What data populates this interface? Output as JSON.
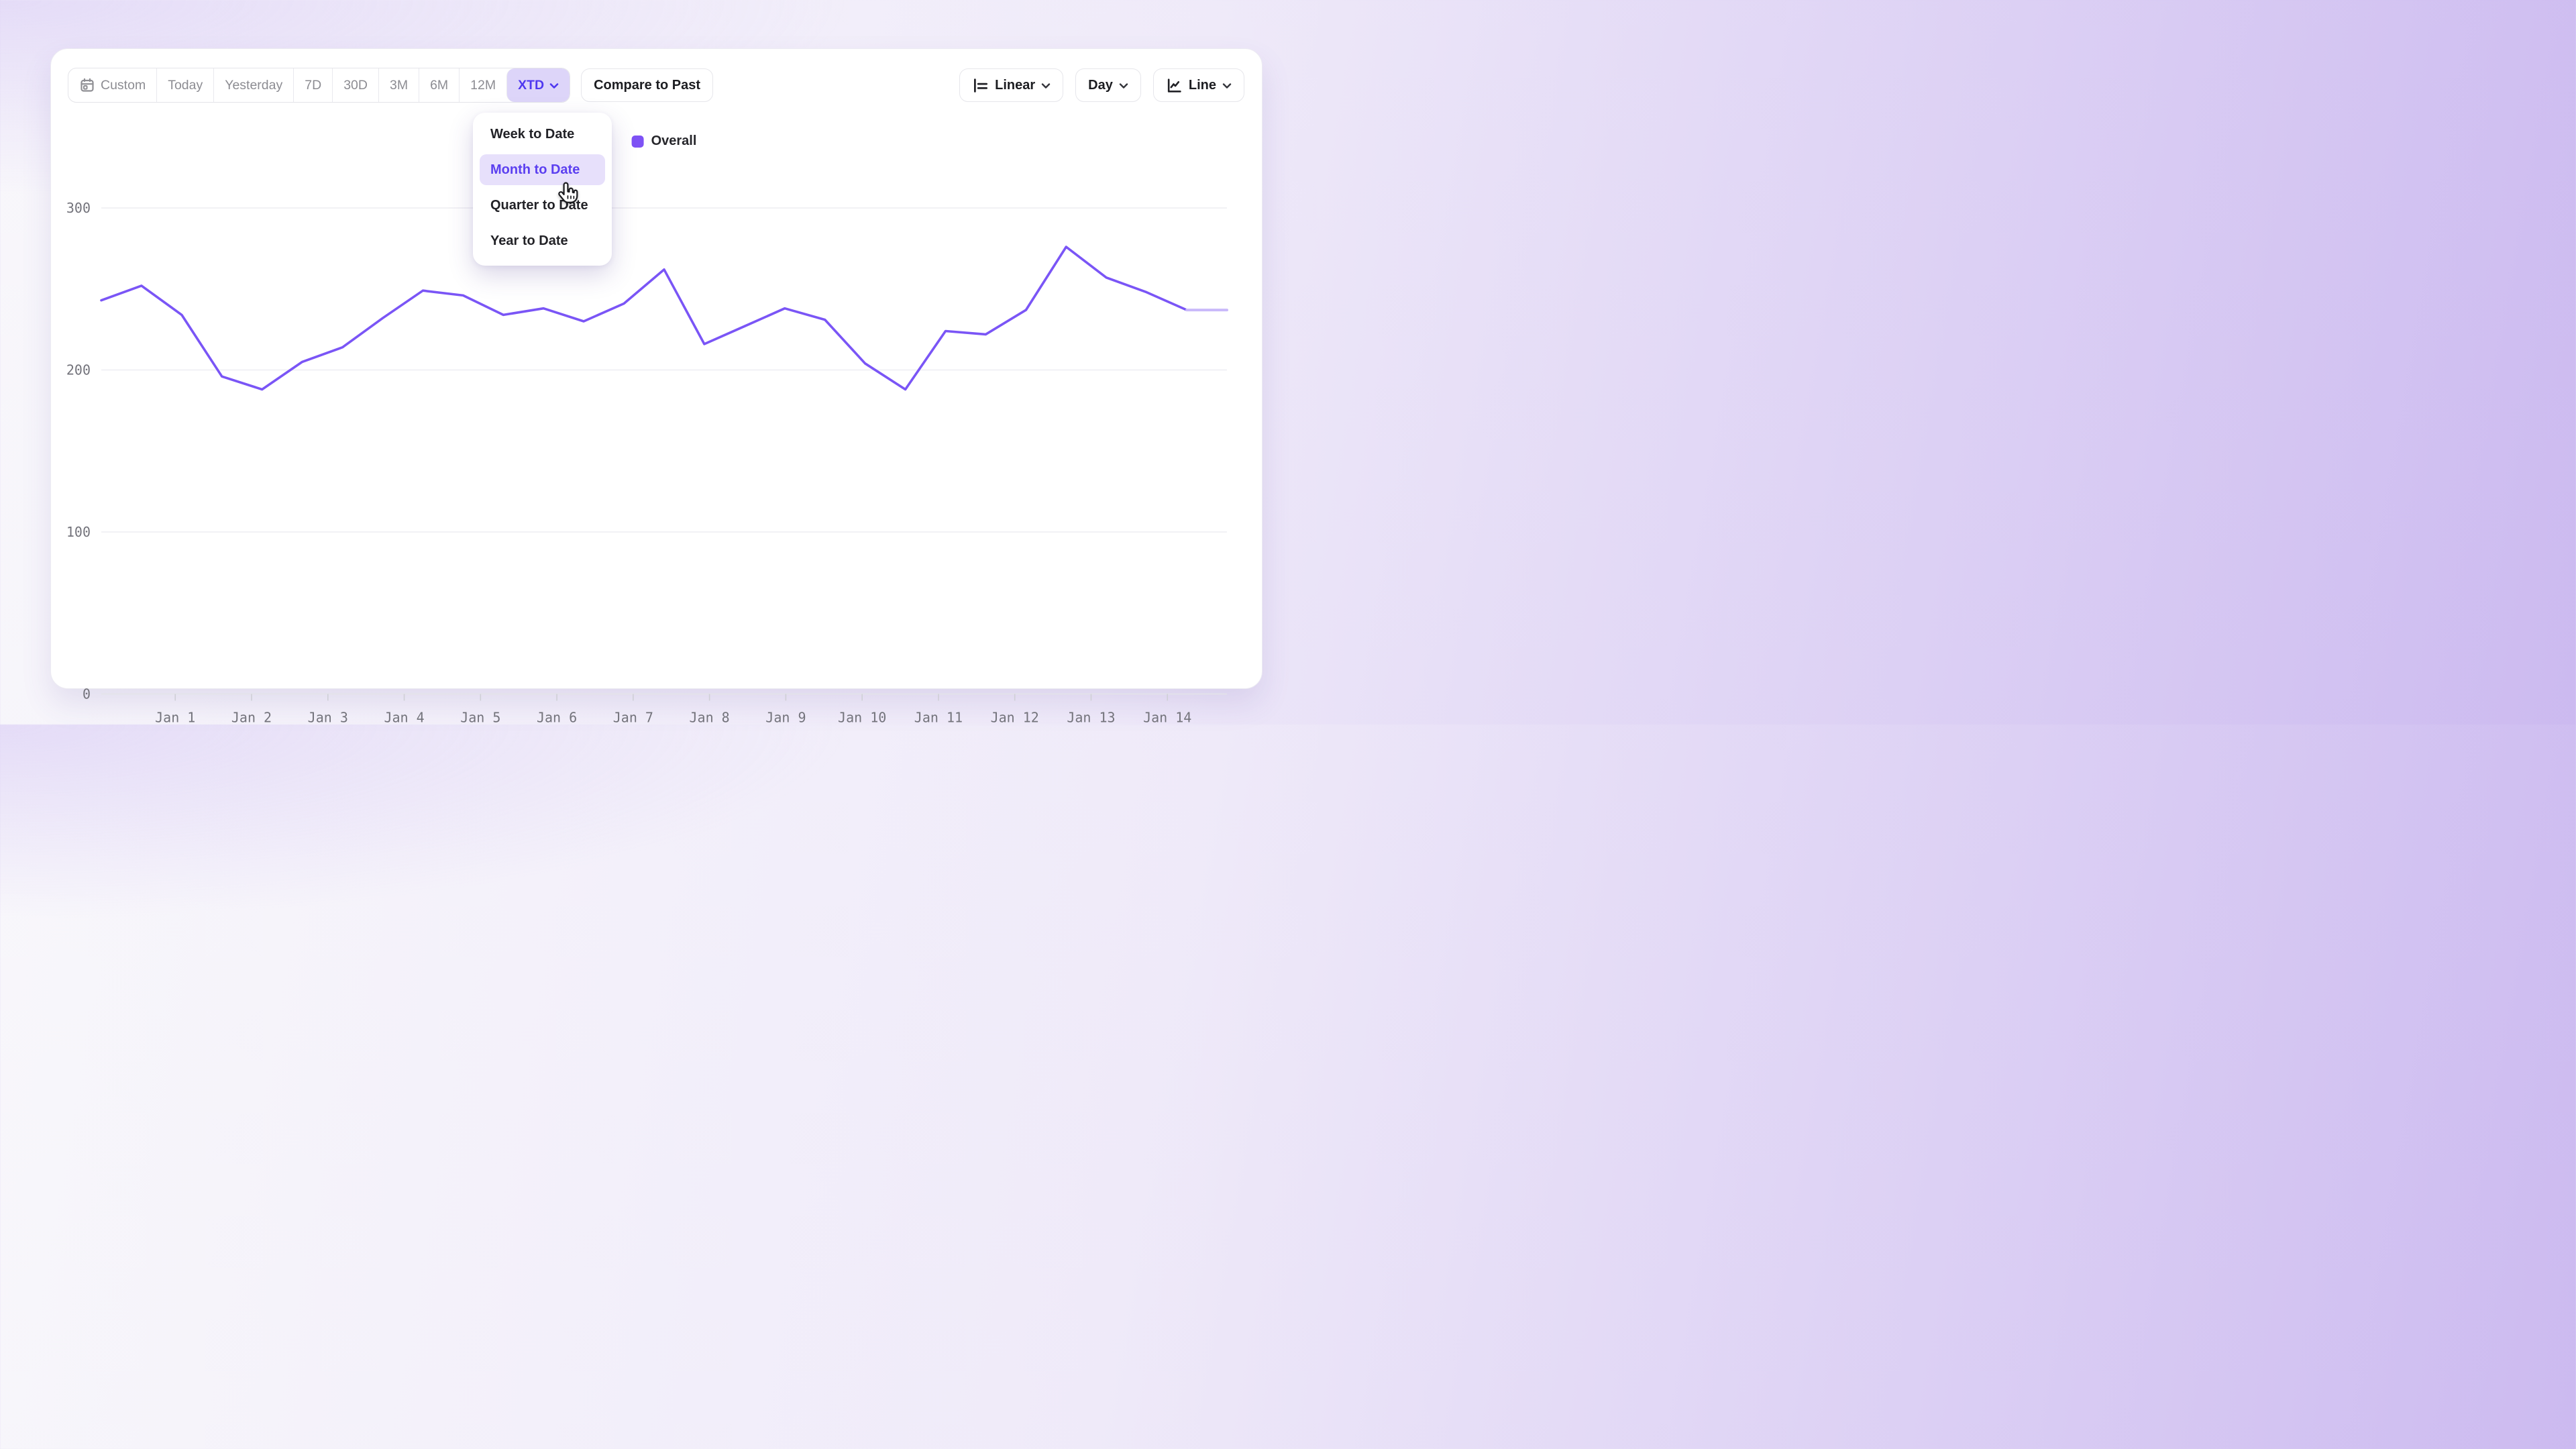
{
  "toolbar": {
    "segments": [
      {
        "label": "Custom",
        "icon": "calendar-icon",
        "active": false,
        "chevron": false
      },
      {
        "label": "Today",
        "active": false,
        "chevron": false
      },
      {
        "label": "Yesterday",
        "active": false,
        "chevron": false
      },
      {
        "label": "7D",
        "active": false,
        "chevron": false
      },
      {
        "label": "30D",
        "active": false,
        "chevron": false
      },
      {
        "label": "3M",
        "active": false,
        "chevron": false
      },
      {
        "label": "6M",
        "active": false,
        "chevron": false
      },
      {
        "label": "12M",
        "active": false,
        "chevron": false
      },
      {
        "label": "XTD",
        "active": true,
        "chevron": true
      }
    ],
    "compare_label": "Compare to Past",
    "scale_label": "Linear",
    "granularity_label": "Day",
    "chart_type_label": "Line"
  },
  "dropdown": {
    "items": [
      {
        "label": "Week to Date",
        "highlighted": false
      },
      {
        "label": "Month to Date",
        "highlighted": true
      },
      {
        "label": "Quarter to Date",
        "highlighted": false
      },
      {
        "label": "Year to Date",
        "highlighted": false
      }
    ]
  },
  "legend": {
    "label": "Overall",
    "swatch_color": "#7e52f5"
  },
  "colors": {
    "accent_text": "#4f38f0",
    "accent_bg": "#ddd5f9",
    "line": "#7a55f6",
    "projection": "#c9b9fa",
    "grid": "#eeedf2",
    "zero_line": "#e3e3e8",
    "tick": "#cfcfd6",
    "axis_text": "#73737b"
  },
  "chart_data": {
    "type": "line",
    "title": "",
    "xlabel": "",
    "ylabel": "",
    "grid": "horizontal",
    "legend_position": "top-center",
    "series": [
      {
        "name": "Overall",
        "color": "#7a55f6",
        "values": [
          243,
          252,
          234,
          196,
          188,
          205,
          214,
          232,
          249,
          246,
          234,
          238,
          230,
          241,
          262,
          216,
          227,
          238,
          231,
          204,
          188,
          224,
          222,
          237,
          276,
          257,
          248,
          237,
          237
        ],
        "projection_start_index": 27
      }
    ],
    "x_ticks": {
      "labels": [
        "Jan 1",
        "Jan 2",
        "Jan 3",
        "Jan 4",
        "Jan 5",
        "Jan 6",
        "Jan 7",
        "Jan 8",
        "Jan 9",
        "Jan 10",
        "Jan 11",
        "Jan 12",
        "Jan 13",
        "Jan 14"
      ],
      "first_tick_fraction": 0.0657,
      "tick_spacing_fraction": 0.0678
    },
    "y_axis": {
      "min": 0,
      "max": 300,
      "ticks": [
        0,
        100,
        200,
        300
      ]
    }
  }
}
